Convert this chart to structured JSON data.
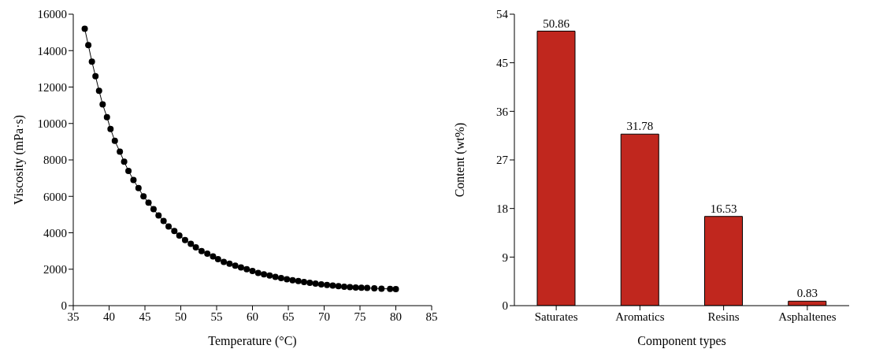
{
  "chart_data": [
    {
      "type": "line",
      "xlabel": "Temperature (°C)",
      "ylabel": "Viscosity (mPa·s)",
      "marker": "circle",
      "grid": false,
      "legend": false,
      "x": [
        36.6,
        37.1,
        37.6,
        38.1,
        38.6,
        39.1,
        39.7,
        40.2,
        40.8,
        41.5,
        42.1,
        42.7,
        43.4,
        44.1,
        44.8,
        45.5,
        46.2,
        46.9,
        47.6,
        48.3,
        49.1,
        49.8,
        50.6,
        51.4,
        52.1,
        52.9,
        53.7,
        54.5,
        55.2,
        56,
        56.8,
        57.6,
        58.4,
        59.2,
        60,
        60.8,
        61.6,
        62.4,
        63.2,
        64,
        64.8,
        65.6,
        66.4,
        67.2,
        68,
        68.8,
        69.6,
        70.4,
        71.2,
        72,
        72.8,
        73.6,
        74.4,
        75.2,
        76,
        77,
        78,
        79.2,
        80
      ],
      "series": [
        {
          "color": "#000000",
          "values": [
            15200,
            14300,
            13400,
            12600,
            11800,
            11050,
            10350,
            9700,
            9050,
            8450,
            7900,
            7400,
            6900,
            6450,
            6000,
            5650,
            5300,
            4950,
            4650,
            4350,
            4100,
            3850,
            3600,
            3400,
            3200,
            3000,
            2850,
            2700,
            2550,
            2400,
            2300,
            2200,
            2100,
            2000,
            1900,
            1800,
            1720,
            1650,
            1580,
            1510,
            1450,
            1400,
            1350,
            1300,
            1250,
            1210,
            1170,
            1130,
            1100,
            1070,
            1040,
            1020,
            1000,
            980,
            970,
            950,
            930,
            920,
            910
          ]
        }
      ],
      "xlim": [
        35,
        85
      ],
      "xticks": [
        35,
        40,
        45,
        50,
        55,
        60,
        65,
        70,
        75,
        80,
        85
      ],
      "ylim": [
        0,
        16000
      ],
      "yticks": [
        0,
        2000,
        4000,
        6000,
        8000,
        10000,
        12000,
        14000,
        16000
      ]
    },
    {
      "type": "bar",
      "xlabel": "Component types",
      "ylabel": "Content (wt%)",
      "grid": false,
      "legend": false,
      "data_labels": true,
      "categories": [
        "Saturates",
        "Aromatics",
        "Resins",
        "Asphaltenes"
      ],
      "series": [
        {
          "color": "#c0271e",
          "values": [
            50.86,
            31.78,
            16.53,
            0.83
          ]
        }
      ],
      "ylim": [
        0,
        54
      ],
      "yticks": [
        0,
        9,
        18,
        27,
        36,
        45,
        54
      ]
    }
  ]
}
